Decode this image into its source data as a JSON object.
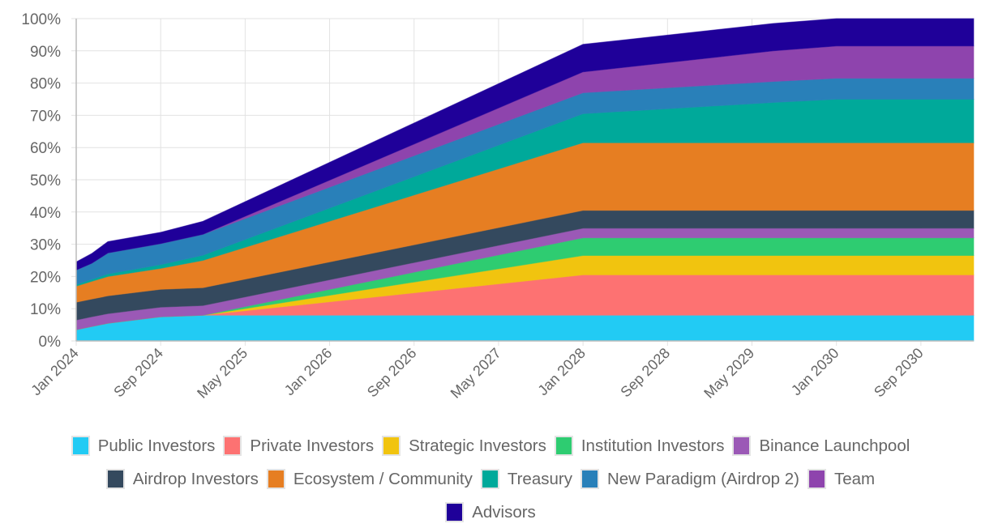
{
  "chart_data": {
    "type": "area",
    "stacked": true,
    "title": "",
    "xlabel": "",
    "ylabel": "",
    "ylim": [
      0,
      100
    ],
    "y_ticks": [
      "0%",
      "10%",
      "20%",
      "30%",
      "40%",
      "50%",
      "60%",
      "70%",
      "80%",
      "90%",
      "100%"
    ],
    "xlim": [
      "2024-01-01",
      "2031-02-01"
    ],
    "x_ticks": [
      {
        "date": "2024-01-01",
        "label": "Jan 2024"
      },
      {
        "date": "2024-09-01",
        "label": "Sep 2024"
      },
      {
        "date": "2025-05-01",
        "label": "May 2025"
      },
      {
        "date": "2026-01-01",
        "label": "Jan 2026"
      },
      {
        "date": "2026-09-01",
        "label": "Sep 2026"
      },
      {
        "date": "2027-05-01",
        "label": "May 2027"
      },
      {
        "date": "2028-01-01",
        "label": "Jan 2028"
      },
      {
        "date": "2028-09-01",
        "label": "Sep 2028"
      },
      {
        "date": "2029-05-01",
        "label": "May 2029"
      },
      {
        "date": "2030-01-01",
        "label": "Jan 2030"
      },
      {
        "date": "2030-09-01",
        "label": "Sep 2030"
      }
    ],
    "grid": true,
    "legend_position": "bottom",
    "x": [
      "2024-01-01",
      "2024-02-15",
      "2024-04-01",
      "2024-09-01",
      "2025-01-01",
      "2028-01-01",
      "2029-07-01",
      "2030-01-01",
      "2031-02-01"
    ],
    "series": [
      {
        "name": "Public Investors",
        "color": "#22cbf4",
        "values": [
          3.5,
          4.5,
          5.5,
          7.5,
          8,
          8,
          8,
          8,
          8
        ]
      },
      {
        "name": "Private Investors",
        "color": "#fd7272",
        "values": [
          0,
          0,
          0,
          0,
          0,
          12.5,
          12.5,
          12.5,
          12.5
        ]
      },
      {
        "name": "Strategic Investors",
        "color": "#f1c40f",
        "values": [
          0,
          0,
          0,
          0,
          0,
          6,
          6,
          6,
          6
        ]
      },
      {
        "name": "Institution Investors",
        "color": "#2ecc71",
        "values": [
          0,
          0,
          0,
          0,
          0,
          5.5,
          5.5,
          5.5,
          5.5
        ]
      },
      {
        "name": "Binance Launchpool",
        "color": "#9b59b6",
        "values": [
          3,
          3,
          3,
          3,
          3,
          3,
          3,
          3,
          3
        ]
      },
      {
        "name": "Airdrop Investors",
        "color": "#34495e",
        "values": [
          5.5,
          5.5,
          5.5,
          5.5,
          5.5,
          5.5,
          5.5,
          5.5,
          5.5
        ]
      },
      {
        "name": "Ecosystem / Community",
        "color": "#e67e22",
        "values": [
          5,
          5.5,
          6,
          6.5,
          8.5,
          21,
          21,
          21,
          21
        ]
      },
      {
        "name": "Treasury",
        "color": "#00a99a",
        "values": [
          0.5,
          0.6,
          0.8,
          1.2,
          1.6,
          9,
          12.5,
          13.5,
          13.5
        ]
      },
      {
        "name": "New Paradigm (Airdrop 2)",
        "color": "#2980b9",
        "values": [
          4.5,
          5,
          6.5,
          6.5,
          6.5,
          6.5,
          6.5,
          6.5,
          6.5
        ]
      },
      {
        "name": "Team",
        "color": "#8e44ad",
        "values": [
          0,
          0,
          0,
          0,
          0,
          6.5,
          9.5,
          10,
          10
        ]
      },
      {
        "name": "Advisors",
        "color": "#1f0099",
        "values": [
          2.5,
          3,
          3.5,
          3.5,
          4,
          8.5,
          8.5,
          8.5,
          8.5
        ]
      }
    ]
  }
}
